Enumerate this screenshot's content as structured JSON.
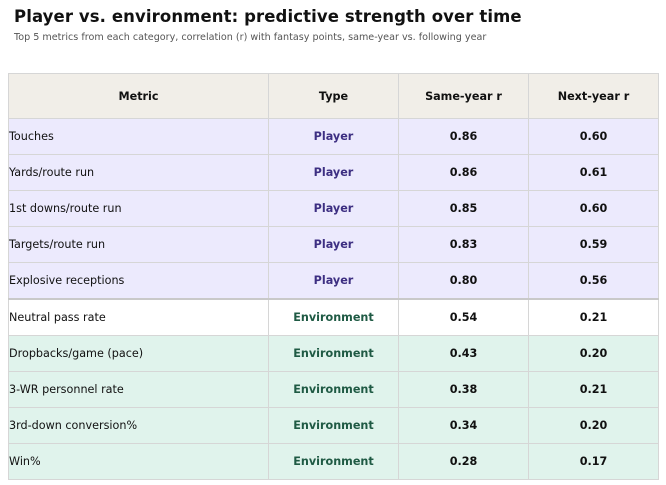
{
  "chart_data": {
    "type": "table",
    "title": "Player vs. environment: predictive strength over time",
    "subtitle": "Top 5 metrics from each category, correlation (r) with fantasy points, same-year vs. following year",
    "columns": [
      "Metric",
      "Type",
      "Same-year r",
      "Next-year r"
    ],
    "rows": [
      {
        "metric": "Touches",
        "type": "Player",
        "same_year_r": "0.86",
        "next_year_r": "0.60"
      },
      {
        "metric": "Yards/route run",
        "type": "Player",
        "same_year_r": "0.86",
        "next_year_r": "0.61"
      },
      {
        "metric": "1st downs/route run",
        "type": "Player",
        "same_year_r": "0.85",
        "next_year_r": "0.60"
      },
      {
        "metric": "Targets/route run",
        "type": "Player",
        "same_year_r": "0.83",
        "next_year_r": "0.59"
      },
      {
        "metric": "Explosive receptions",
        "type": "Player",
        "same_year_r": "0.80",
        "next_year_r": "0.56"
      },
      {
        "metric": "Neutral pass rate",
        "type": "Environment",
        "same_year_r": "0.54",
        "next_year_r": "0.21"
      },
      {
        "metric": "Dropbacks/game (pace)",
        "type": "Environment",
        "same_year_r": "0.43",
        "next_year_r": "0.20"
      },
      {
        "metric": "3-WR personnel rate",
        "type": "Environment",
        "same_year_r": "0.38",
        "next_year_r": "0.21"
      },
      {
        "metric": "3rd-down conversion%",
        "type": "Environment",
        "same_year_r": "0.34",
        "next_year_r": "0.20"
      },
      {
        "metric": "Win%",
        "type": "Environment",
        "same_year_r": "0.28",
        "next_year_r": "0.17"
      }
    ],
    "colors": {
      "header_bg": "#f1eee8",
      "player_row_bg": "#eceafd",
      "player_text": "#3d2f82",
      "environment_row_bg": "#e0f3ec",
      "environment_text": "#1f5a44"
    }
  }
}
